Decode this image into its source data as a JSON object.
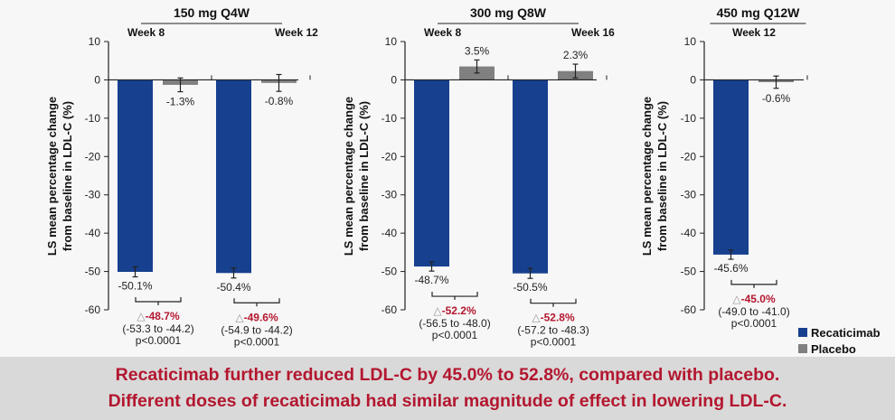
{
  "chart_data": {
    "type": "bar",
    "ylabel_line1": "LS mean percentage change",
    "ylabel_line2": "from baseline in LDL-C (%)",
    "ylim": [
      -60,
      10
    ],
    "yticks": [
      10,
      0,
      -10,
      -20,
      -30,
      -40,
      -50,
      -60
    ],
    "grid": false,
    "legend": {
      "placement": "bottom-right",
      "entries": [
        {
          "name": "Recaticimab",
          "color": "#17408e"
        },
        {
          "name": "Placebo",
          "color": "#808080"
        }
      ]
    },
    "delta_symbol": "△",
    "panels": [
      {
        "title": "150 mg Q4W",
        "timepoints": [
          {
            "label": "Week 8",
            "recaticimab": {
              "value": -50.1,
              "label": "-50.1%",
              "err": 1.3
            },
            "placebo": {
              "value": -1.3,
              "label": "-1.3%",
              "err": 1.8
            },
            "delta": "-48.7%",
            "ci": "(-53.3 to -44.2)",
            "p": "p<0.0001"
          },
          {
            "label": "Week 12",
            "recaticimab": {
              "value": -50.4,
              "label": "-50.4%",
              "err": 1.3
            },
            "placebo": {
              "value": -0.8,
              "label": "-0.8%",
              "err": 2.2
            },
            "delta": "-49.6%",
            "ci": "(-54.9 to -44.2)",
            "p": "p<0.0001"
          }
        ]
      },
      {
        "title": "300 mg Q8W",
        "timepoints": [
          {
            "label": "Week 8",
            "recaticimab": {
              "value": -48.7,
              "label": "-48.7%",
              "err": 1.2
            },
            "placebo": {
              "value": 3.5,
              "label": "3.5%",
              "err": 1.7
            },
            "delta": "-52.2%",
            "ci": "(-56.5 to -48.0)",
            "p": "p<0.0001"
          },
          {
            "label": "Week 16",
            "recaticimab": {
              "value": -50.5,
              "label": "-50.5%",
              "err": 1.3
            },
            "placebo": {
              "value": 2.3,
              "label": "2.3%",
              "err": 1.8
            },
            "delta": "-52.8%",
            "ci": "(-57.2 to -48.3)",
            "p": "p<0.0001"
          }
        ]
      },
      {
        "title": "450 mg Q12W",
        "timepoints": [
          {
            "label": "Week 12",
            "recaticimab": {
              "value": -45.6,
              "label": "-45.6%",
              "err": 1.2
            },
            "placebo": {
              "value": -0.6,
              "label": "-0.6%",
              "err": 1.6
            },
            "delta": "-45.0%",
            "ci": "(-49.0 to -41.0)",
            "p": "p<0.0001"
          }
        ]
      }
    ]
  },
  "banner": {
    "line1": "Recaticimab further reduced LDL-C by 45.0% to 52.8%, compared with placebo.",
    "line2": "Different doses of recaticimab had similar magnitude of effect in lowering LDL-C."
  }
}
